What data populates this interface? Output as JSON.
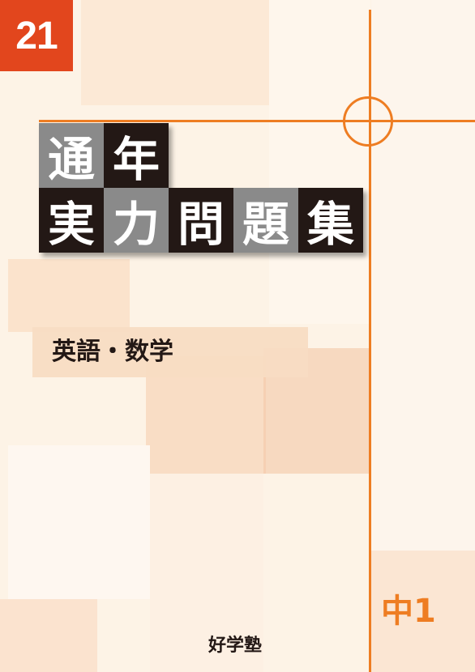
{
  "cover": {
    "volume_number": "21",
    "title_line1": [
      "通",
      "年"
    ],
    "title_line2": [
      "実",
      "力",
      "問",
      "題",
      "集"
    ],
    "subject": "英語・数学",
    "grade": "中1",
    "publisher": "好学塾",
    "colors": {
      "accent_orange": "#ee7d22",
      "badge_red": "#e2461d",
      "title_dark": "#231815",
      "title_gray": "#8a8a8a",
      "background": "#fdf3e6"
    }
  }
}
